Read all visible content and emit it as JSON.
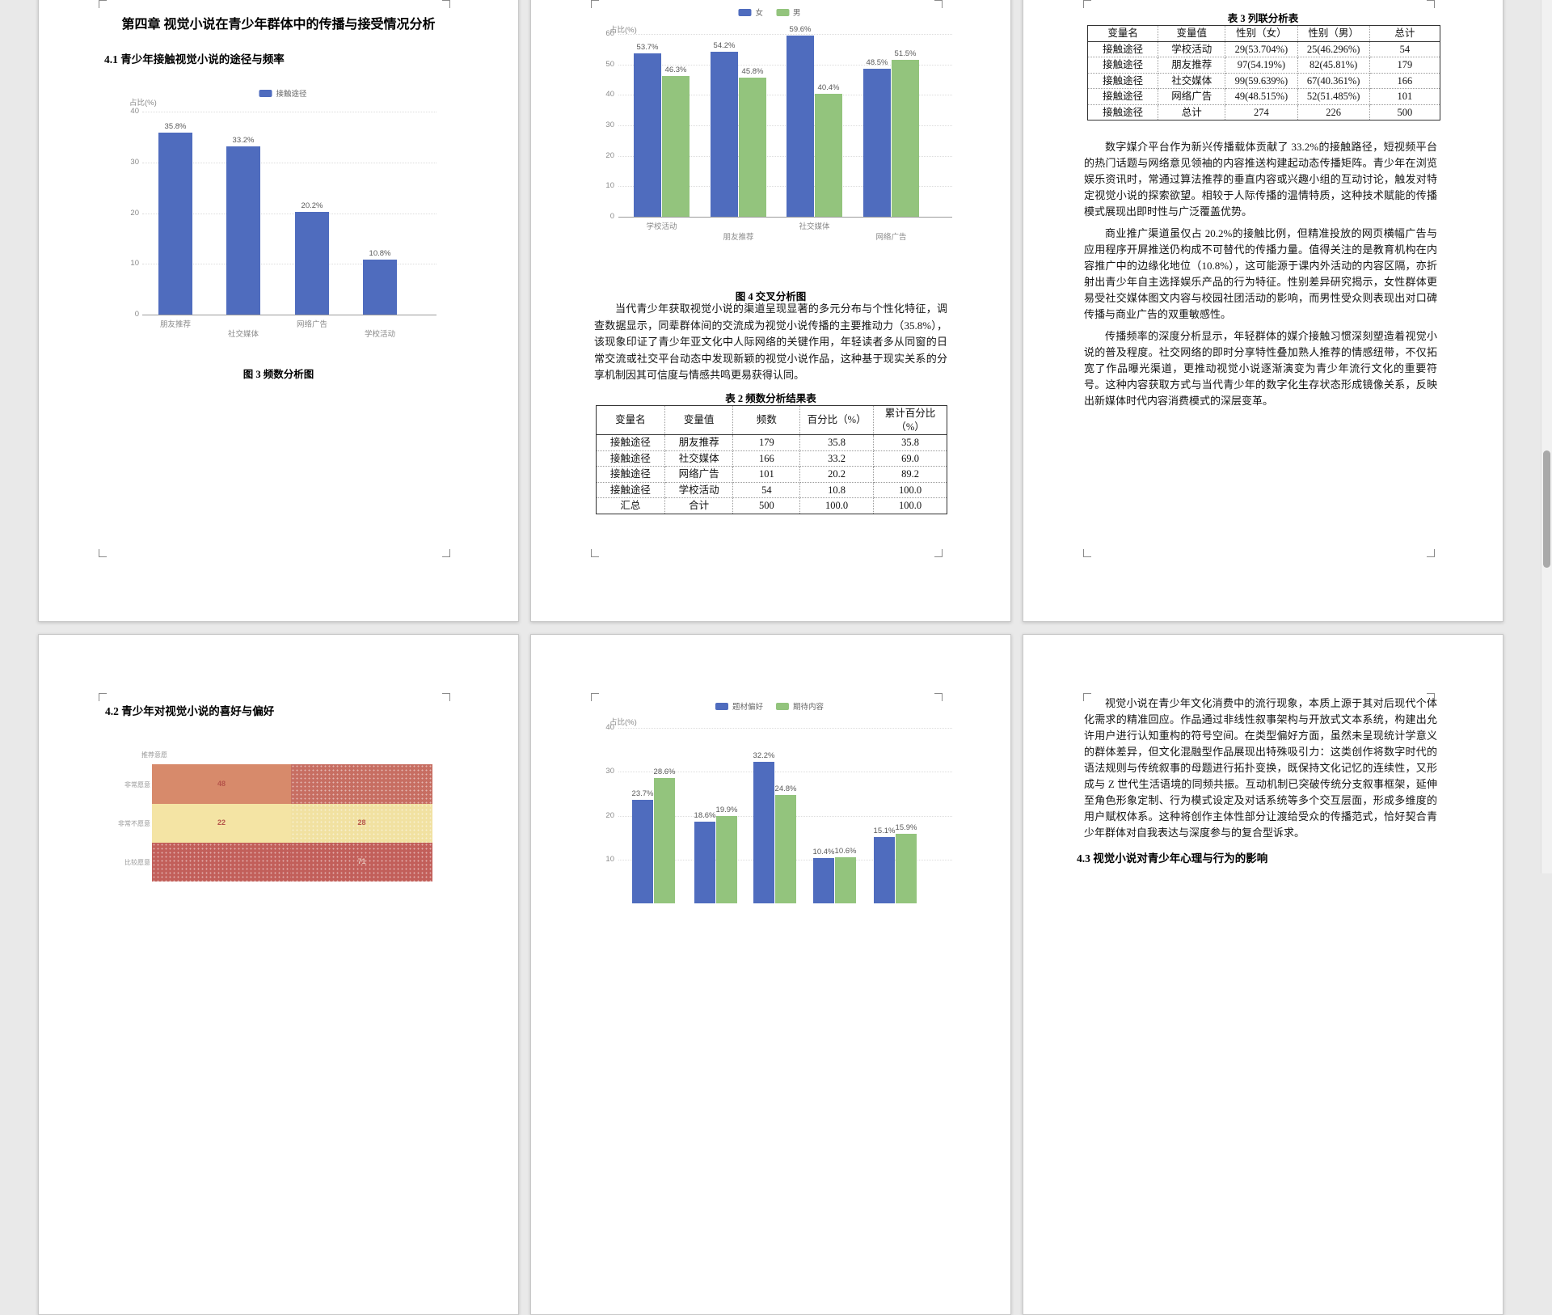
{
  "pages": {
    "p1": {
      "chapter_title": "第四章  视觉小说在青少年群体中的传播与接受情况分析",
      "section_title": "4.1  青少年接触视觉小说的途径与频率",
      "figure_caption": "图 3  频数分析图"
    },
    "p2": {
      "figure_caption": "图 4  交叉分析图",
      "paragraph": "当代青少年获取视觉小说的渠道呈现显著的多元分布与个性化特征，调查数据显示，同辈群体间的交流成为视觉小说传播的主要推动力（35.8%），该现象印证了青少年亚文化中人际网络的关键作用，年轻读者多从同窗的日常交流或社交平台动态中发现新颖的视觉小说作品，这种基于现实关系的分享机制因其可信度与情感共鸣更易获得认同。",
      "table_title": "表 2  频数分析结果表",
      "table": {
        "headers": [
          "变量名",
          "变量值",
          "频数",
          "百分比（%）",
          "累计百分比（%）"
        ],
        "rows": [
          [
            "接触途径",
            "朋友推荐",
            "179",
            "35.8",
            "35.8"
          ],
          [
            "接触途径",
            "社交媒体",
            "166",
            "33.2",
            "69.0"
          ],
          [
            "接触途径",
            "网络广告",
            "101",
            "20.2",
            "89.2"
          ],
          [
            "接触途径",
            "学校活动",
            "54",
            "10.8",
            "100.0"
          ],
          [
            "汇总",
            "合计",
            "500",
            "100.0",
            "100.0"
          ]
        ]
      }
    },
    "p3": {
      "table_title": "表 3  列联分析表",
      "table": {
        "headers": [
          "变量名",
          "变量值",
          "性别（女）",
          "性别（男）",
          "总计"
        ],
        "rows": [
          [
            "接触途径",
            "学校活动",
            "29(53.704%)",
            "25(46.296%)",
            "54"
          ],
          [
            "接触途径",
            "朋友推荐",
            "97(54.19%)",
            "82(45.81%)",
            "179"
          ],
          [
            "接触途径",
            "社交媒体",
            "99(59.639%)",
            "67(40.361%)",
            "166"
          ],
          [
            "接触途径",
            "网络广告",
            "49(48.515%)",
            "52(51.485%)",
            "101"
          ],
          [
            "接触途径",
            "总计",
            "274",
            "226",
            "500"
          ]
        ]
      },
      "paragraphs": [
        "数字媒介平台作为新兴传播载体贡献了 33.2%的接触路径，短视频平台的热门话题与网络意见领袖的内容推送构建起动态传播矩阵。青少年在浏览娱乐资讯时，常通过算法推荐的垂直内容或兴趣小组的互动讨论，触发对特定视觉小说的探索欲望。相较于人际传播的温情特质，这种技术赋能的传播模式展现出即时性与广泛覆盖优势。",
        "商业推广渠道虽仅占 20.2%的接触比例，但精准投放的网页横幅广告与应用程序开屏推送仍构成不可替代的传播力量。值得关注的是教育机构在内容推广中的边缘化地位（10.8%），这可能源于课内外活动的内容区隔，亦折射出青少年自主选择娱乐产品的行为特征。性别差异研究揭示，女性群体更易受社交媒体图文内容与校园社团活动的影响，而男性受众则表现出对口碑传播与商业广告的双重敏感性。",
        "传播频率的深度分析显示，年轻群体的媒介接触习惯深刻塑造着视觉小说的普及程度。社交网络的即时分享特性叠加熟人推荐的情感纽带，不仅拓宽了作品曝光渠道，更推动视觉小说逐渐演变为青少年流行文化的重要符号。这种内容获取方式与当代青少年的数字化生存状态形成镜像关系，反映出新媒体时代内容消费模式的深层变革。"
      ]
    },
    "p4": {
      "section_title": "4.2  青少年对视觉小说的喜好与偏好"
    },
    "p6": {
      "paragraph": "视觉小说在青少年文化消费中的流行现象，本质上源于其对后现代个体化需求的精准回应。作品通过非线性叙事架构与开放式文本系统，构建出允许用户进行认知重构的符号空间。在类型偏好方面，虽然未呈现统计学意义的群体差异，但文化混融型作品展现出特殊吸引力：这类创作将数字时代的语法规则与传统叙事的母题进行拓扑变换，既保持文化记忆的连续性，又形成与 Z 世代生活语境的同频共振。互动机制已突破传统分支叙事框架，延伸至角色形象定制、行为模式设定及对话系统等多个交互层面，形成多维度的用户赋权体系。这种将创作主体性部分让渡给受众的传播范式，恰好契合青少年群体对自我表达与深度参与的复合型诉求。",
      "section_title": "4.3  视觉小说对青少年心理与行为的影响"
    }
  },
  "chart_data": [
    {
      "id": "fig3",
      "type": "bar",
      "title": "图 3 频数分析图",
      "legend": [
        "接触途径"
      ],
      "bar_color": "#4f6cbe",
      "ylabel": "占比(%)",
      "ylim": [
        0,
        40
      ],
      "yticks": [
        40,
        30,
        20,
        10,
        0
      ],
      "grid": true,
      "categories": [
        "朋友推荐",
        "社交媒体",
        "网络广告",
        "学校活动"
      ],
      "values": [
        35.8,
        33.2,
        20.2,
        10.8
      ]
    },
    {
      "id": "fig4",
      "type": "bar",
      "title": "图 4 交叉分析图",
      "ylabel": "占比(%)",
      "ylim": [
        0,
        60
      ],
      "yticks": [
        60,
        50,
        40,
        30,
        20,
        10,
        0
      ],
      "grid": true,
      "legend_position": "top",
      "categories": [
        "学校活动",
        "朋友推荐",
        "社交媒体",
        "网络广告"
      ],
      "series": [
        {
          "name": "女",
          "color": "#4f6cbe",
          "values": [
            53.7,
            54.2,
            59.6,
            48.5
          ]
        },
        {
          "name": "男",
          "color": "#93c47d",
          "values": [
            46.3,
            45.8,
            40.4,
            51.5
          ]
        }
      ]
    },
    {
      "id": "section42-bars",
      "type": "bar",
      "ylabel": "占比(%)",
      "ylim": [
        0,
        40
      ],
      "yticks": [
        40,
        30,
        20,
        10
      ],
      "grid": true,
      "legend_position": "top",
      "series": [
        {
          "name": "题材偏好",
          "color": "#4f6cbe",
          "values": [
            23.7,
            18.6,
            32.2,
            10.4,
            15.1
          ]
        },
        {
          "name": "期待内容",
          "color": "#93c47d",
          "values": [
            28.6,
            19.9,
            24.8,
            10.6,
            15.9
          ]
        }
      ]
    },
    {
      "id": "section42-heatmap",
      "type": "heatmap",
      "top_label": "推荐意愿",
      "row_labels": [
        "非常愿意",
        "非常不愿意",
        "比较愿意"
      ],
      "visible_values": [
        [
          "48",
          ""
        ],
        [
          "22",
          "28"
        ],
        [
          "",
          "71"
        ]
      ],
      "cell_colors": [
        [
          "#d78a6b",
          "#c76e62"
        ],
        [
          "#f4e4a4",
          "#f1e1a1"
        ],
        [
          "#c25f5a",
          "#c25f5a"
        ]
      ],
      "value_colors": [
        [
          "#b5544a",
          "#c76e62"
        ],
        [
          "#b5544a",
          "#b5544a"
        ],
        [
          "#c25f5a",
          "#e6c4b8"
        ]
      ]
    }
  ]
}
